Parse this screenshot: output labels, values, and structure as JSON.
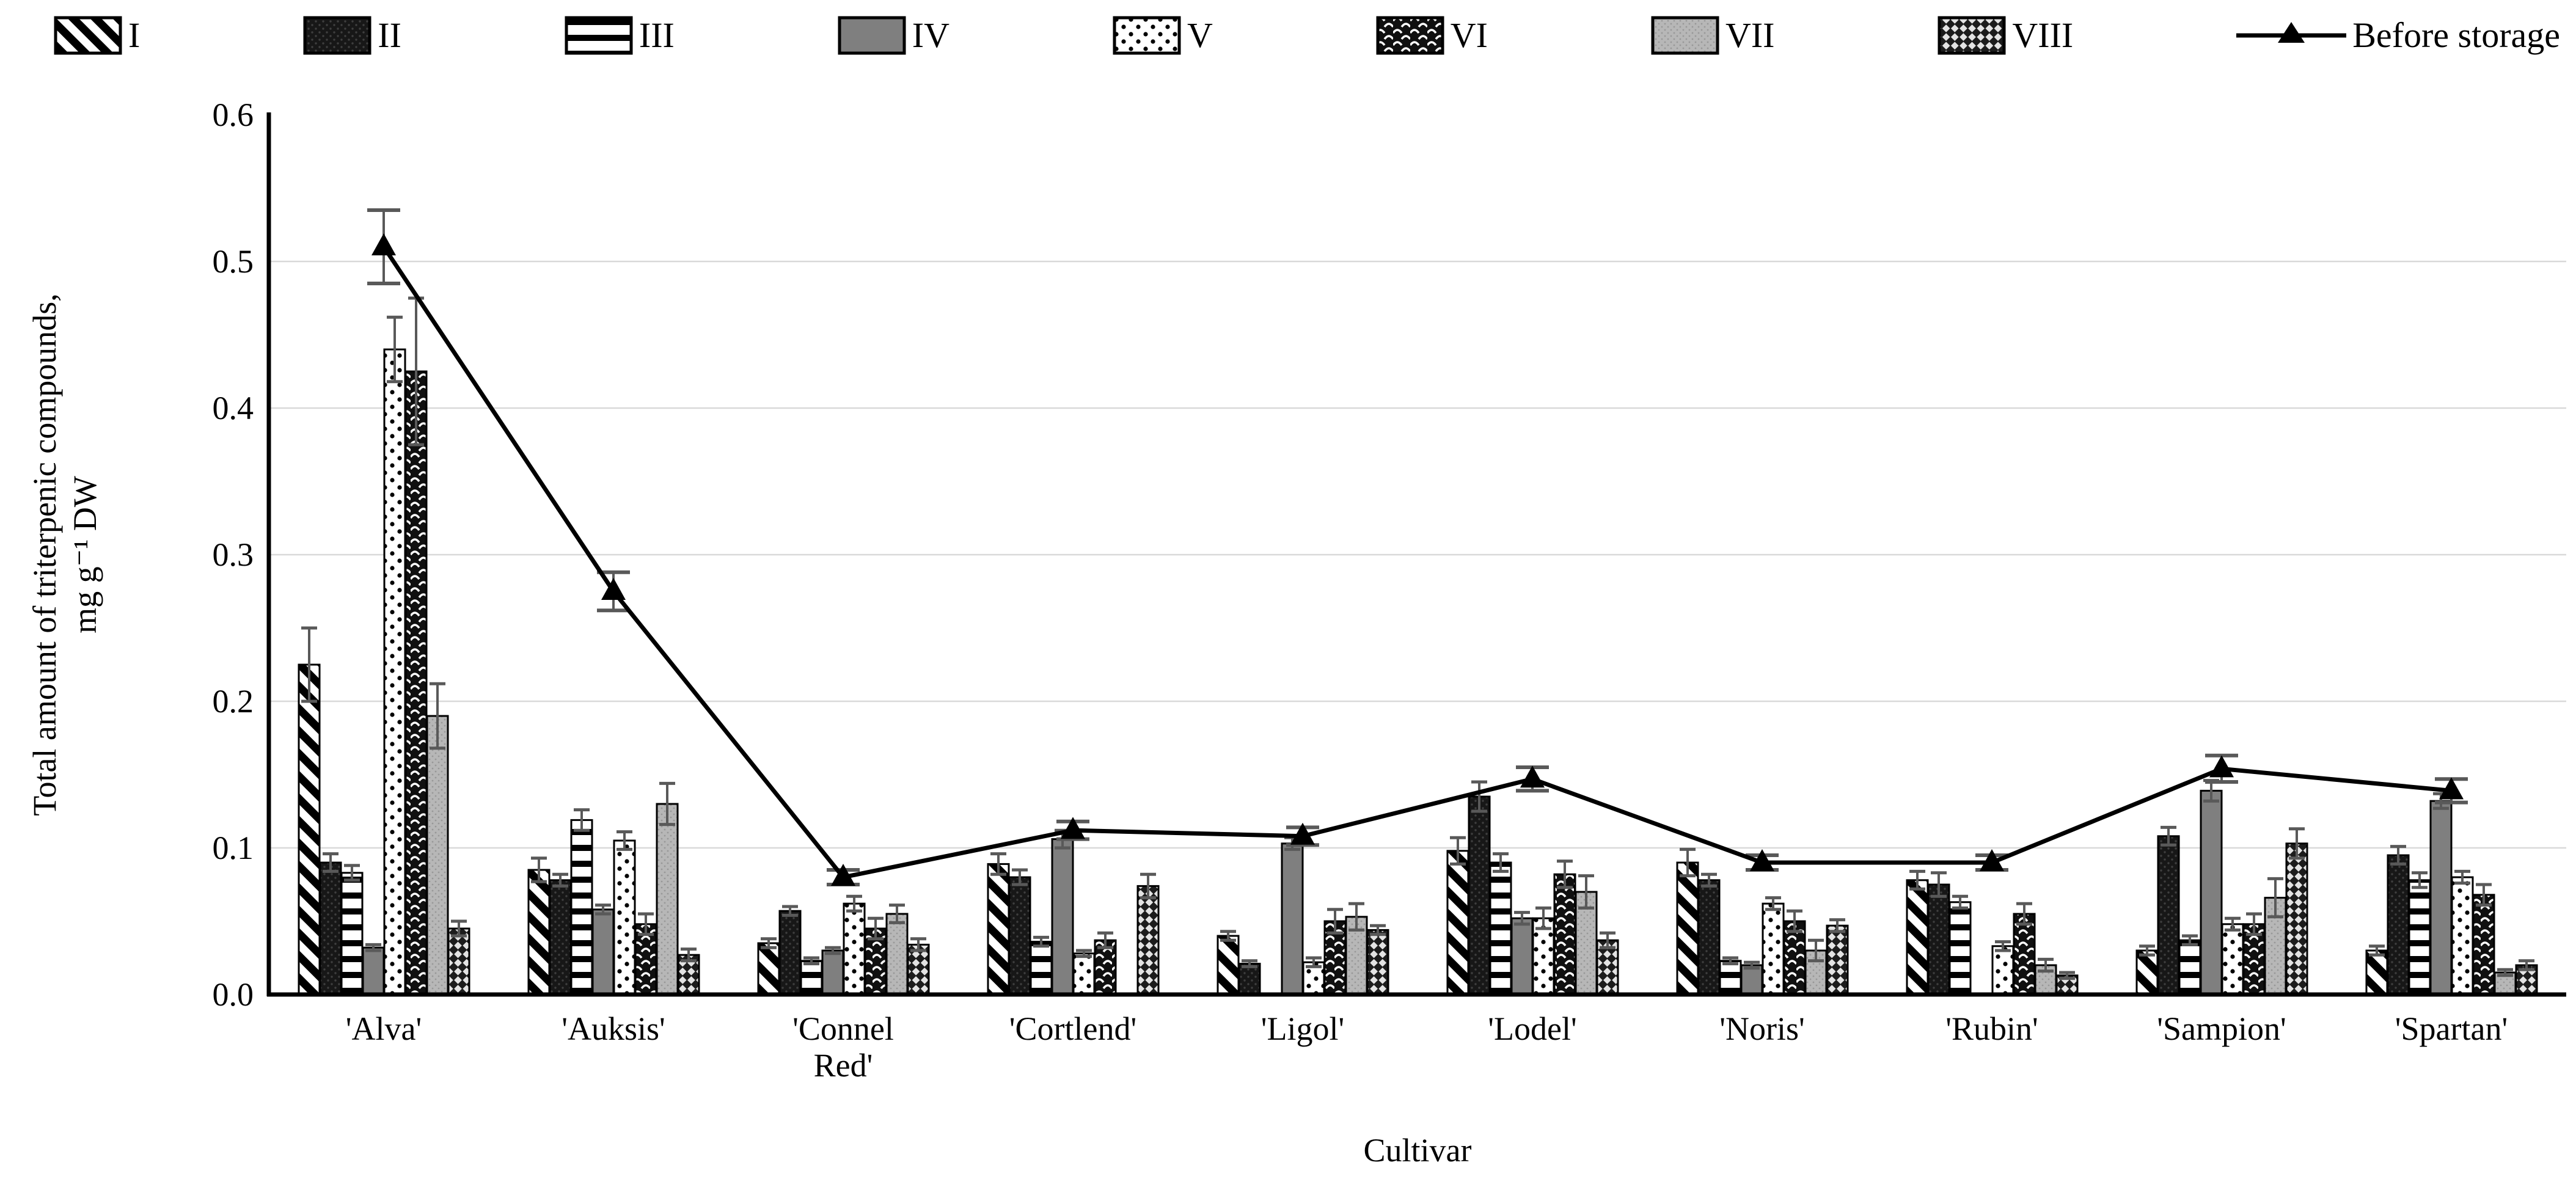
{
  "legend": {
    "items": [
      {
        "label": "I",
        "pattern": "pat-1"
      },
      {
        "label": "II",
        "pattern": "pat-2"
      },
      {
        "label": "III",
        "pattern": "pat-3"
      },
      {
        "label": "IV",
        "pattern": "pat-4"
      },
      {
        "label": "V",
        "pattern": "pat-5"
      },
      {
        "label": "VI",
        "pattern": "pat-6"
      },
      {
        "label": "VII",
        "pattern": "pat-7"
      },
      {
        "label": "VIII",
        "pattern": "pat-8"
      },
      {
        "label": "Before storage",
        "pattern": "line"
      }
    ]
  },
  "chart_data": {
    "type": "bar",
    "title": "",
    "xlabel": "Cultivar",
    "ylabel_line1": "Total amount of triterpenic compounds,",
    "ylabel_line2": "mg g⁻¹ DW",
    "ylim": [
      0,
      0.6
    ],
    "yticks": [
      0,
      0.1,
      0.2,
      0.3,
      0.4,
      0.5,
      0.6
    ],
    "ytick_labels": [
      "0.0",
      "0.1",
      "0.2",
      "0.3",
      "0.4",
      "0.5",
      "0.6"
    ],
    "grid": true,
    "legend_position": "top",
    "categories": [
      "'Alva'",
      "'Auksis'",
      "'Connel\nRed'",
      "'Cortlend'",
      "'Ligol'",
      "'Lodel'",
      "'Noris'",
      "'Rubin'",
      "'Sampion'",
      "'Spartan'"
    ],
    "series": [
      {
        "name": "I",
        "pattern": "pat-1",
        "values": [
          0.225,
          0.085,
          0.035,
          0.089,
          0.04,
          0.098,
          0.09,
          0.078,
          0.03,
          0.03
        ],
        "errors": [
          0.025,
          0.008,
          0.003,
          0.007,
          0.003,
          0.009,
          0.009,
          0.006,
          0.003,
          0.003
        ]
      },
      {
        "name": "II",
        "pattern": "pat-2",
        "values": [
          0.09,
          0.078,
          0.057,
          0.08,
          0.021,
          0.135,
          0.078,
          0.075,
          0.108,
          0.095
        ],
        "errors": [
          0.006,
          0.004,
          0.003,
          0.005,
          0.002,
          0.01,
          0.004,
          0.008,
          0.006,
          0.006
        ]
      },
      {
        "name": "III",
        "pattern": "pat-3",
        "values": [
          0.083,
          0.119,
          0.023,
          0.036,
          0.0,
          0.09,
          0.023,
          0.063,
          0.037,
          0.078
        ],
        "errors": [
          0.005,
          0.007,
          0.002,
          0.003,
          0.0,
          0.006,
          0.002,
          0.004,
          0.003,
          0.005
        ]
      },
      {
        "name": "IV",
        "pattern": "pat-4",
        "values": [
          0.032,
          0.058,
          0.03,
          0.106,
          0.103,
          0.052,
          0.02,
          0.0,
          0.139,
          0.132
        ],
        "errors": [
          0.002,
          0.003,
          0.002,
          0.006,
          0.004,
          0.004,
          0.002,
          0.0,
          0.007,
          0.005
        ]
      },
      {
        "name": "V",
        "pattern": "pat-5",
        "values": [
          0.44,
          0.105,
          0.062,
          0.028,
          0.022,
          0.052,
          0.062,
          0.033,
          0.048,
          0.08
        ],
        "errors": [
          0.022,
          0.006,
          0.005,
          0.002,
          0.003,
          0.007,
          0.004,
          0.003,
          0.004,
          0.004
        ]
      },
      {
        "name": "VI",
        "pattern": "pat-6",
        "values": [
          0.425,
          0.048,
          0.045,
          0.037,
          0.05,
          0.082,
          0.05,
          0.055,
          0.048,
          0.068
        ],
        "errors": [
          0.05,
          0.007,
          0.007,
          0.005,
          0.008,
          0.009,
          0.007,
          0.007,
          0.007,
          0.007
        ]
      },
      {
        "name": "VII",
        "pattern": "pat-7",
        "values": [
          0.19,
          0.13,
          0.055,
          0.0,
          0.053,
          0.07,
          0.03,
          0.02,
          0.066,
          0.015
        ],
        "errors": [
          0.022,
          0.014,
          0.006,
          0.0,
          0.009,
          0.011,
          0.007,
          0.004,
          0.013,
          0.002
        ]
      },
      {
        "name": "VIII",
        "pattern": "pat-8",
        "values": [
          0.045,
          0.027,
          0.034,
          0.074,
          0.044,
          0.037,
          0.047,
          0.013,
          0.103,
          0.02
        ],
        "errors": [
          0.005,
          0.004,
          0.004,
          0.008,
          0.003,
          0.005,
          0.004,
          0.002,
          0.01,
          0.003
        ]
      }
    ],
    "line_series": {
      "name": "Before storage",
      "values": [
        0.51,
        0.275,
        0.08,
        0.112,
        0.108,
        0.147,
        0.09,
        0.09,
        0.154,
        0.139
      ],
      "errors": [
        0.025,
        0.013,
        0.005,
        0.006,
        0.006,
        0.008,
        0.005,
        0.005,
        0.009,
        0.008
      ]
    }
  },
  "colors": {
    "axis": "#000000",
    "gridline": "#d9d9d9",
    "error_bar": "#595959",
    "line_series": "#000000",
    "bar_outline": "#000000"
  }
}
